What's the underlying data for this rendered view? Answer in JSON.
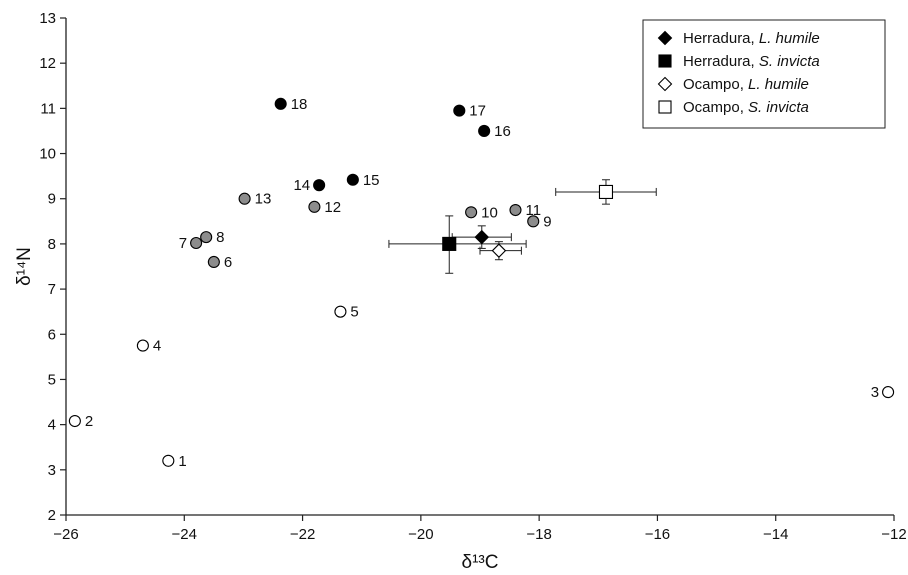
{
  "chart_data": {
    "type": "scatter",
    "xlabel": "δ¹³C",
    "ylabel": "δ¹⁴N",
    "xlim": [
      -26,
      -12
    ],
    "ylim": [
      2,
      13
    ],
    "xticks": [
      -26,
      -24,
      -22,
      -20,
      -18,
      -16,
      -14,
      -12
    ],
    "yticks": [
      2,
      3,
      4,
      5,
      6,
      7,
      8,
      9,
      10,
      11,
      12,
      13
    ],
    "xtick_labels": [
      "−26",
      "−24",
      "−22",
      "−20",
      "−18",
      "−16",
      "−14",
      "−12"
    ],
    "ytick_labels": [
      "2",
      "3",
      "4",
      "5",
      "6",
      "7",
      "8",
      "9",
      "10",
      "11",
      "12",
      "13"
    ],
    "grid": false,
    "legend_position": "top-right",
    "colors": {
      "white": "#ffffff",
      "grey": "#8c8c8c",
      "black": "#000000"
    },
    "points": [
      {
        "label": "1",
        "x": -24.27,
        "y": 3.2,
        "fill": "white"
      },
      {
        "label": "2",
        "x": -25.85,
        "y": 4.08,
        "fill": "white"
      },
      {
        "label": "3",
        "x": -12.1,
        "y": 4.72,
        "fill": "white"
      },
      {
        "label": "4",
        "x": -24.7,
        "y": 5.75,
        "fill": "white"
      },
      {
        "label": "5",
        "x": -21.36,
        "y": 6.5,
        "fill": "white"
      },
      {
        "label": "6",
        "x": -23.5,
        "y": 7.6,
        "fill": "grey"
      },
      {
        "label": "7",
        "x": -23.8,
        "y": 8.02,
        "fill": "grey"
      },
      {
        "label": "8",
        "x": -23.63,
        "y": 8.15,
        "fill": "grey"
      },
      {
        "label": "9",
        "x": -18.1,
        "y": 8.5,
        "fill": "grey"
      },
      {
        "label": "10",
        "x": -19.15,
        "y": 8.7,
        "fill": "grey"
      },
      {
        "label": "11",
        "x": -18.4,
        "y": 8.75,
        "fill": "grey"
      },
      {
        "label": "12",
        "x": -21.8,
        "y": 8.82,
        "fill": "grey"
      },
      {
        "label": "13",
        "x": -22.98,
        "y": 9.0,
        "fill": "grey"
      },
      {
        "label": "14",
        "x": -21.72,
        "y": 9.3,
        "fill": "black"
      },
      {
        "label": "15",
        "x": -21.15,
        "y": 9.42,
        "fill": "black"
      },
      {
        "label": "16",
        "x": -18.93,
        "y": 10.5,
        "fill": "black"
      },
      {
        "label": "17",
        "x": -19.35,
        "y": 10.95,
        "fill": "black"
      },
      {
        "label": "18",
        "x": -22.37,
        "y": 11.1,
        "fill": "black"
      }
    ],
    "series": [
      {
        "name_main": "Herradura, ",
        "name_italic": "L. humile",
        "marker": "diamond",
        "fill": "black",
        "x": -18.97,
        "y": 8.15,
        "xerr": [
          0.5,
          0.5
        ],
        "yerr": [
          0.25,
          0.25
        ]
      },
      {
        "name_main": "Herradura, ",
        "name_italic": "S. invicta",
        "marker": "square",
        "fill": "black",
        "x": -19.52,
        "y": 8.0,
        "xerr": [
          1.02,
          1.3
        ],
        "yerr": [
          0.65,
          0.62
        ]
      },
      {
        "name_main": "Ocampo, ",
        "name_italic": "L. humile",
        "marker": "diamond",
        "fill": "white",
        "x": -18.68,
        "y": 7.85,
        "xerr": [
          0.32,
          0.38
        ],
        "yerr": [
          0.2,
          0.2
        ]
      },
      {
        "name_main": "Ocampo, ",
        "name_italic": "S. invicta",
        "marker": "square",
        "fill": "white",
        "x": -16.87,
        "y": 9.15,
        "xerr": [
          0.85,
          0.85
        ],
        "yerr": [
          0.27,
          0.27
        ]
      }
    ]
  }
}
